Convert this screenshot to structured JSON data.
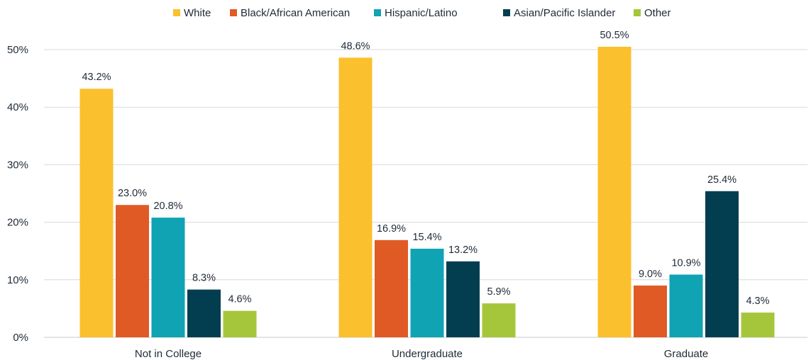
{
  "chart_data": {
    "type": "bar",
    "categories": [
      "Not in College",
      "Undergraduate",
      "Graduate"
    ],
    "series": [
      {
        "name": "White",
        "color": "#FBC02D",
        "values": [
          43.2,
          48.6,
          50.5
        ],
        "labels": [
          "43.2%",
          "48.6%",
          "50.5%"
        ]
      },
      {
        "name": "Black/African American",
        "color": "#E05A25",
        "values": [
          23.0,
          16.9,
          9.0
        ],
        "labels": [
          "23.0%",
          "16.9%",
          "9.0%"
        ]
      },
      {
        "name": "Hispanic/Latino",
        "color": "#0FA3B4",
        "values": [
          20.8,
          15.4,
          10.9
        ],
        "labels": [
          "20.8%",
          "15.4%",
          "10.9%"
        ]
      },
      {
        "name": "Asian/Pacific Islander",
        "color": "#023E50",
        "values": [
          8.3,
          13.2,
          25.4
        ],
        "labels": [
          "8.3%",
          "13.2%",
          "25.4%"
        ]
      },
      {
        "name": "Other",
        "color": "#A5C63B",
        "values": [
          4.6,
          5.9,
          4.3
        ],
        "labels": [
          "4.6%",
          "5.9%",
          "4.3%"
        ]
      }
    ],
    "ylim": [
      0,
      50
    ],
    "yticks": [
      0,
      10,
      20,
      30,
      40,
      50
    ],
    "ytick_labels": [
      "0%",
      "10%",
      "20%",
      "30%",
      "40%",
      "50%"
    ],
    "grid": true,
    "legend_position": "top-center",
    "title": "",
    "xlabel": "",
    "ylabel": ""
  }
}
